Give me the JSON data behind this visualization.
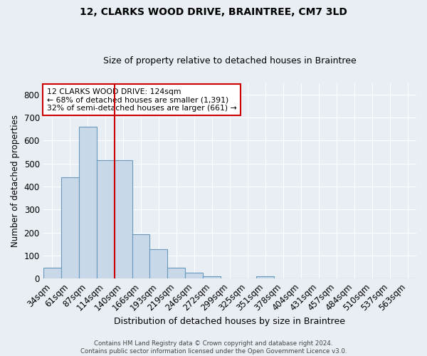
{
  "title": "12, CLARKS WOOD DRIVE, BRAINTREE, CM7 3LD",
  "subtitle": "Size of property relative to detached houses in Braintree",
  "xlabel": "Distribution of detached houses by size in Braintree",
  "ylabel": "Number of detached properties",
  "bar_labels": [
    "34sqm",
    "61sqm",
    "87sqm",
    "114sqm",
    "140sqm",
    "166sqm",
    "193sqm",
    "219sqm",
    "246sqm",
    "272sqm",
    "299sqm",
    "325sqm",
    "351sqm",
    "378sqm",
    "404sqm",
    "431sqm",
    "457sqm",
    "484sqm",
    "510sqm",
    "537sqm",
    "563sqm"
  ],
  "bar_values": [
    47,
    440,
    660,
    515,
    515,
    193,
    127,
    47,
    25,
    10,
    0,
    0,
    10,
    0,
    0,
    0,
    0,
    0,
    0,
    0,
    0
  ],
  "bar_color": "#c8d8e8",
  "bar_edge_color": "#6699bb",
  "annotation_text": "12 CLARKS WOOD DRIVE: 124sqm\n← 68% of detached houses are smaller (1,391)\n32% of semi-detached houses are larger (661) →",
  "annotation_box_color": "#ffffff",
  "annotation_box_edge": "#cc0000",
  "ylim": [
    0,
    850
  ],
  "yticks": [
    0,
    100,
    200,
    300,
    400,
    500,
    600,
    700,
    800
  ],
  "background_color": "#e8eef4",
  "grid_color": "#d0dce8",
  "footnote1": "Contains HM Land Registry data © Crown copyright and database right 2024.",
  "footnote2": "Contains public sector information licensed under the Open Government Licence v3.0."
}
